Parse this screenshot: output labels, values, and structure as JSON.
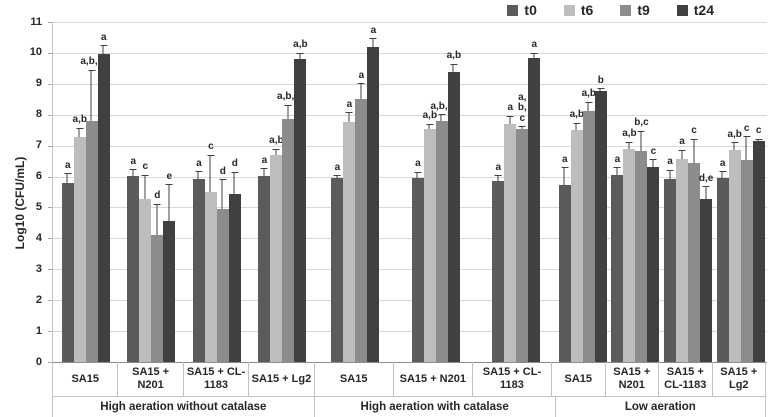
{
  "legend": [
    {
      "label": "t0",
      "color": "#5b5b5b"
    },
    {
      "label": "t6",
      "color": "#bdbdbd"
    },
    {
      "label": "t9",
      "color": "#8c8c8c"
    },
    {
      "label": "t24",
      "color": "#404040"
    }
  ],
  "colors": {
    "gridline": "#d9d9d9",
    "axis": "#8c8c8c",
    "error_bar": "#404040"
  },
  "chart_data": {
    "type": "bar",
    "title": "",
    "xlabel": "",
    "ylabel": "Log10 (CFU/mL)",
    "ylim": [
      0,
      11
    ],
    "ytick_step": 1,
    "grid": true,
    "legend_position": "top-right",
    "series_names": [
      "t0",
      "t6",
      "t9",
      "t24"
    ],
    "series_colors": [
      "#5b5b5b",
      "#bdbdbd",
      "#8c8c8c",
      "#404040"
    ],
    "groups": [
      {
        "condition": "High aeration without catalase",
        "clusters": [
          {
            "label": "SA15",
            "values": [
              5.78,
              7.28,
              7.8,
              9.97
            ],
            "errors": [
              0.33,
              0.3,
              1.65,
              0.28
            ],
            "annotations": [
              "a",
              "a,b",
              "a,b,c",
              "a"
            ]
          },
          {
            "label": "SA15 + N201",
            "values": [
              6.02,
              5.28,
              4.12,
              4.56
            ],
            "errors": [
              0.22,
              0.78,
              1.0,
              1.2
            ],
            "annotations": [
              "a",
              "c",
              "d",
              "e"
            ]
          },
          {
            "label": "SA15 + CL-1183",
            "values": [
              5.91,
              5.51,
              4.95,
              5.45
            ],
            "errors": [
              0.27,
              1.2,
              0.97,
              0.7
            ],
            "annotations": [
              "a",
              "c",
              "d",
              "d"
            ]
          },
          {
            "label": "SA15 + Lg2",
            "values": [
              6.02,
              6.7,
              7.85,
              9.8
            ],
            "errors": [
              0.25,
              0.2,
              0.48,
              0.2
            ],
            "annotations": [
              "a",
              "a,b",
              "a,b,c",
              "a,b"
            ]
          }
        ]
      },
      {
        "condition": "High aeration with catalase",
        "clusters": [
          {
            "label": "SA15",
            "values": [
              5.97,
              7.78,
              8.52,
              10.18
            ],
            "errors": [
              0.08,
              0.3,
              0.5,
              0.3
            ],
            "annotations": [
              "a",
              "a",
              "a",
              "a"
            ]
          },
          {
            "label": "SA15 + N201",
            "values": [
              5.95,
              7.53,
              7.81,
              9.38
            ],
            "errors": [
              0.2,
              0.18,
              0.2,
              0.27
            ],
            "annotations": [
              "a",
              "a,b",
              "a,b,c",
              "a,b"
            ]
          },
          {
            "label": "SA15 + CL-1183",
            "values": [
              5.85,
              7.7,
              7.55,
              9.85
            ],
            "errors": [
              0.2,
              0.27,
              0.07,
              0.15
            ],
            "annotations": [
              "a",
              "a",
              "a,\nb,\nc",
              "a"
            ]
          }
        ]
      },
      {
        "condition": "Low aeration",
        "clusters": [
          {
            "label": "SA15",
            "values": [
              5.74,
              7.5,
              8.12,
              8.76
            ],
            "errors": [
              0.57,
              0.25,
              0.3,
              0.1
            ],
            "annotations": [
              "a",
              "a,b",
              "a,b",
              "b"
            ]
          },
          {
            "label": "SA15 + N201",
            "values": [
              6.05,
              6.88,
              6.84,
              6.31
            ],
            "errors": [
              0.25,
              0.25,
              0.65,
              0.25
            ],
            "annotations": [
              "a",
              "a,b",
              "b,c",
              "c"
            ]
          },
          {
            "label": "SA15 + CL-1183",
            "values": [
              5.92,
              6.56,
              6.44,
              5.26
            ],
            "errors": [
              0.3,
              0.3,
              0.78,
              0.43
            ],
            "annotations": [
              "a",
              "a",
              "c",
              "d,e"
            ]
          },
          {
            "label": "SA15 + Lg2",
            "values": [
              5.95,
              6.87,
              6.55,
              7.15
            ],
            "errors": [
              0.23,
              0.25,
              0.75,
              0.07
            ],
            "annotations": [
              "a",
              "a,b",
              "c",
              "c"
            ]
          }
        ]
      }
    ]
  }
}
